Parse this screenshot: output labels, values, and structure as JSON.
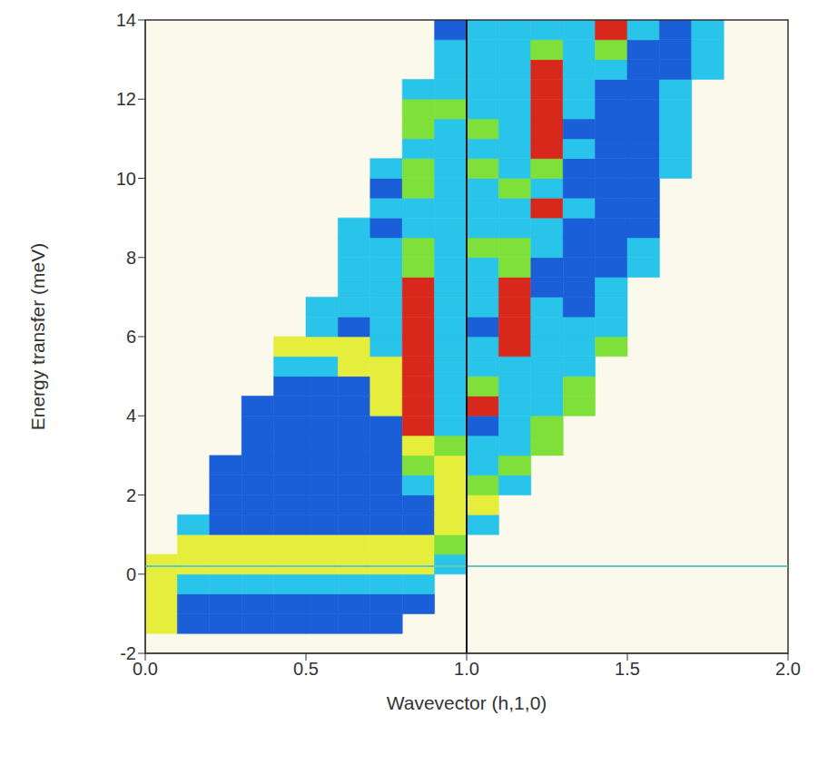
{
  "chart_data": {
    "type": "heatmap",
    "x_label": "Wavevector (h,1,0)",
    "y_label": "Energy transfer (meV)",
    "xlim": [
      0,
      2
    ],
    "ylim": [
      -2,
      14
    ],
    "xticks": [
      {
        "value": 0,
        "label": "0.0"
      },
      {
        "value": 0.5,
        "label": "0.5"
      },
      {
        "value": 1,
        "label": "1.0"
      },
      {
        "value": 1.5,
        "label": "1.5"
      },
      {
        "value": 2,
        "label": "2.0"
      }
    ],
    "yticks": [
      -2,
      0,
      2,
      4,
      6,
      8,
      10,
      12,
      14
    ],
    "grid": false,
    "x_bins": [
      0,
      0.1,
      0.2,
      0.3,
      0.4,
      0.5,
      0.6,
      0.7,
      0.8,
      0.9,
      1.0,
      1.1,
      1.2,
      1.3,
      1.4,
      1.5,
      1.6,
      1.7,
      1.8,
      1.9,
      2.0
    ],
    "y_bins": [
      -1.5,
      -1,
      -0.5,
      0,
      0.5,
      1,
      1.5,
      2,
      2.5,
      3,
      3.5,
      4,
      4.5,
      5,
      5.5,
      6,
      6.5,
      7,
      7.5,
      8,
      8.5,
      9,
      9.5,
      10,
      10.5,
      11,
      11.5,
      12,
      12.5,
      13,
      13.5,
      14
    ],
    "colors": [
      "#1a5fd8",
      "#29c4ea",
      "#7fe03a",
      "#e6ee3c",
      "#d8281c"
    ],
    "cells": [
      [
        3,
        0,
        0,
        0,
        0,
        0,
        0,
        0,
        null,
        null,
        null,
        null,
        null,
        null,
        null,
        null,
        null,
        null,
        null,
        null
      ],
      [
        3,
        0,
        0,
        0,
        0,
        0,
        0,
        0,
        0,
        null,
        null,
        null,
        null,
        null,
        null,
        null,
        null,
        null,
        null,
        null
      ],
      [
        3,
        1,
        1,
        1,
        1,
        1,
        1,
        1,
        1,
        null,
        null,
        null,
        null,
        null,
        null,
        null,
        null,
        null,
        null,
        null
      ],
      [
        3,
        3,
        3,
        3,
        3,
        3,
        3,
        3,
        3,
        1,
        null,
        null,
        null,
        null,
        null,
        null,
        null,
        null,
        null,
        null
      ],
      [
        null,
        3,
        3,
        3,
        3,
        3,
        3,
        3,
        3,
        2,
        null,
        null,
        null,
        null,
        null,
        null,
        null,
        null,
        null,
        null
      ],
      [
        null,
        1,
        0,
        0,
        0,
        0,
        0,
        0,
        0,
        3,
        1,
        null,
        null,
        null,
        null,
        null,
        null,
        null,
        null,
        null
      ],
      [
        null,
        null,
        0,
        0,
        0,
        0,
        0,
        0,
        0,
        3,
        3,
        null,
        null,
        null,
        null,
        null,
        null,
        null,
        null,
        null
      ],
      [
        null,
        null,
        0,
        0,
        0,
        0,
        0,
        0,
        1,
        3,
        2,
        1,
        null,
        null,
        null,
        null,
        null,
        null,
        null,
        null
      ],
      [
        null,
        null,
        0,
        0,
        0,
        0,
        0,
        0,
        2,
        3,
        1,
        2,
        null,
        null,
        null,
        null,
        null,
        null,
        null,
        null
      ],
      [
        null,
        null,
        null,
        0,
        0,
        0,
        0,
        0,
        3,
        2,
        1,
        1,
        2,
        null,
        null,
        null,
        null,
        null,
        null,
        null
      ],
      [
        null,
        null,
        null,
        0,
        0,
        0,
        0,
        0,
        4,
        1,
        0,
        1,
        2,
        null,
        null,
        null,
        null,
        null,
        null,
        null
      ],
      [
        null,
        null,
        null,
        0,
        0,
        0,
        0,
        3,
        4,
        1,
        4,
        1,
        1,
        2,
        null,
        null,
        null,
        null,
        null,
        null
      ],
      [
        null,
        null,
        null,
        null,
        0,
        0,
        0,
        3,
        4,
        1,
        2,
        1,
        1,
        2,
        null,
        null,
        null,
        null,
        null,
        null
      ],
      [
        null,
        null,
        null,
        null,
        1,
        1,
        3,
        3,
        4,
        1,
        1,
        1,
        1,
        1,
        null,
        null,
        null,
        null,
        null,
        null
      ],
      [
        null,
        null,
        null,
        null,
        3,
        3,
        3,
        1,
        4,
        1,
        1,
        4,
        1,
        1,
        2,
        null,
        null,
        null,
        null,
        null
      ],
      [
        null,
        null,
        null,
        null,
        null,
        1,
        0,
        1,
        4,
        1,
        0,
        4,
        1,
        1,
        1,
        null,
        null,
        null,
        null,
        null
      ],
      [
        null,
        null,
        null,
        null,
        null,
        1,
        1,
        1,
        4,
        1,
        1,
        4,
        1,
        0,
        1,
        null,
        null,
        null,
        null,
        null
      ],
      [
        null,
        null,
        null,
        null,
        null,
        null,
        1,
        1,
        4,
        1,
        1,
        4,
        0,
        0,
        1,
        null,
        null,
        null,
        null,
        null
      ],
      [
        null,
        null,
        null,
        null,
        null,
        null,
        1,
        1,
        2,
        1,
        1,
        2,
        0,
        0,
        0,
        1,
        null,
        null,
        null,
        null
      ],
      [
        null,
        null,
        null,
        null,
        null,
        null,
        1,
        1,
        2,
        1,
        2,
        2,
        1,
        0,
        0,
        1,
        null,
        null,
        null,
        null
      ],
      [
        null,
        null,
        null,
        null,
        null,
        null,
        1,
        0,
        1,
        1,
        1,
        1,
        1,
        0,
        0,
        0,
        null,
        null,
        null,
        null
      ],
      [
        null,
        null,
        null,
        null,
        null,
        null,
        null,
        1,
        1,
        1,
        1,
        1,
        4,
        1,
        0,
        0,
        null,
        null,
        null,
        null
      ],
      [
        null,
        null,
        null,
        null,
        null,
        null,
        null,
        0,
        2,
        1,
        1,
        2,
        1,
        0,
        0,
        0,
        null,
        null,
        null,
        null
      ],
      [
        null,
        null,
        null,
        null,
        null,
        null,
        null,
        1,
        2,
        1,
        2,
        1,
        2,
        0,
        0,
        0,
        1,
        null,
        null,
        null
      ],
      [
        null,
        null,
        null,
        null,
        null,
        null,
        null,
        null,
        1,
        1,
        1,
        1,
        4,
        1,
        0,
        0,
        1,
        null,
        null,
        null
      ],
      [
        null,
        null,
        null,
        null,
        null,
        null,
        null,
        null,
        2,
        1,
        2,
        1,
        4,
        0,
        0,
        0,
        1,
        null,
        null,
        null
      ],
      [
        null,
        null,
        null,
        null,
        null,
        null,
        null,
        null,
        2,
        2,
        1,
        1,
        4,
        1,
        0,
        0,
        1,
        null,
        null,
        null
      ],
      [
        null,
        null,
        null,
        null,
        null,
        null,
        null,
        null,
        1,
        1,
        1,
        1,
        4,
        1,
        0,
        0,
        1,
        null,
        null,
        null
      ],
      [
        null,
        null,
        null,
        null,
        null,
        null,
        null,
        null,
        null,
        1,
        1,
        1,
        4,
        1,
        1,
        0,
        0,
        1,
        null,
        null
      ],
      [
        null,
        null,
        null,
        null,
        null,
        null,
        null,
        null,
        null,
        1,
        1,
        1,
        2,
        1,
        2,
        0,
        0,
        1,
        null,
        null
      ],
      [
        null,
        null,
        null,
        null,
        null,
        null,
        null,
        null,
        null,
        0,
        1,
        1,
        1,
        1,
        4,
        1,
        0,
        1,
        null,
        null
      ]
    ],
    "vlines": [
      1
    ],
    "hlines": [
      0.2
    ]
  }
}
